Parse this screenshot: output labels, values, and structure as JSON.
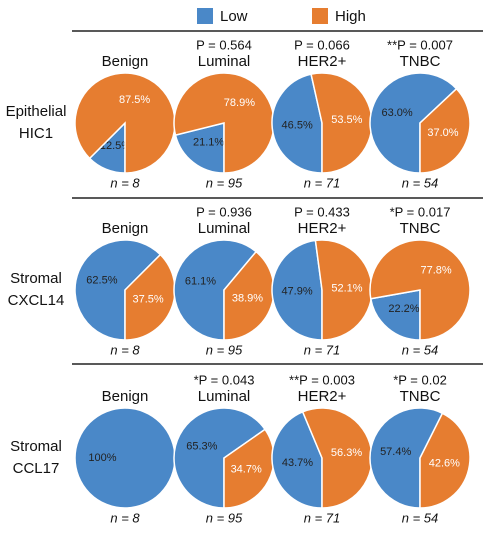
{
  "legend": [
    {
      "name": "Low",
      "color": "#4a88c8",
      "label_color": "#222222"
    },
    {
      "name": "High",
      "color": "#e67d30",
      "label_color": "#ffffff"
    }
  ],
  "row_labels": [
    [
      "Epithelial",
      "HIC1"
    ],
    [
      "Stromal",
      "CXCL14"
    ],
    [
      "Stromal",
      "CCL17"
    ]
  ],
  "chart_data": [
    {
      "type": "pie",
      "row": 0,
      "title": "Benign",
      "subtitle": null,
      "note": "n = 8",
      "values": [
        12.5,
        87.5
      ],
      "value_labels": [
        "12.5%",
        "87.5%"
      ]
    },
    {
      "type": "pie",
      "row": 0,
      "title": "Luminal",
      "subtitle": "P = 0.564",
      "note": "n = 95",
      "values": [
        21.1,
        78.9
      ],
      "value_labels": [
        "21.1%",
        "78.9%"
      ]
    },
    {
      "type": "pie",
      "row": 0,
      "title": "HER2+",
      "subtitle": "P = 0.066",
      "note": "n = 71",
      "values": [
        46.5,
        53.5
      ],
      "value_labels": [
        "46.5%",
        "53.5%"
      ]
    },
    {
      "type": "pie",
      "row": 0,
      "title": "TNBC",
      "subtitle": "**P = 0.007",
      "note": "n = 54",
      "values": [
        63.0,
        37.0
      ],
      "value_labels": [
        "63.0%",
        "37.0%"
      ]
    },
    {
      "type": "pie",
      "row": 1,
      "title": "Benign",
      "subtitle": null,
      "note": "n = 8",
      "values": [
        62.5,
        37.5
      ],
      "value_labels": [
        "62.5%",
        "37.5%"
      ]
    },
    {
      "type": "pie",
      "row": 1,
      "title": "Luminal",
      "subtitle": "P = 0.936",
      "note": "n = 95",
      "values": [
        61.1,
        38.9
      ],
      "value_labels": [
        "61.1%",
        "38.9%"
      ]
    },
    {
      "type": "pie",
      "row": 1,
      "title": "HER2+",
      "subtitle": "P = 0.433",
      "note": "n = 71",
      "values": [
        47.9,
        52.1
      ],
      "value_labels": [
        "47.9%",
        "52.1%"
      ]
    },
    {
      "type": "pie",
      "row": 1,
      "title": "TNBC",
      "subtitle": "*P = 0.017",
      "note": "n = 54",
      "values": [
        22.2,
        77.8
      ],
      "value_labels": [
        "22.2%",
        "77.8%"
      ]
    },
    {
      "type": "pie",
      "row": 2,
      "title": "Benign",
      "subtitle": null,
      "note": "n = 8",
      "values": [
        100,
        0
      ],
      "value_labels": [
        "100%",
        null
      ]
    },
    {
      "type": "pie",
      "row": 2,
      "title": "Luminal",
      "subtitle": "*P = 0.043",
      "note": "n = 95",
      "values": [
        65.3,
        34.7
      ],
      "value_labels": [
        "65.3%",
        "34.7%"
      ]
    },
    {
      "type": "pie",
      "row": 2,
      "title": "HER2+",
      "subtitle": "**P = 0.003",
      "note": "n = 71",
      "values": [
        43.7,
        56.3
      ],
      "value_labels": [
        "43.7%",
        "56.3%"
      ]
    },
    {
      "type": "pie",
      "row": 2,
      "title": "TNBC",
      "subtitle": "*P = 0.02",
      "note": "n = 54",
      "values": [
        57.4,
        42.6
      ],
      "value_labels": [
        "57.4%",
        "42.6%"
      ]
    }
  ]
}
